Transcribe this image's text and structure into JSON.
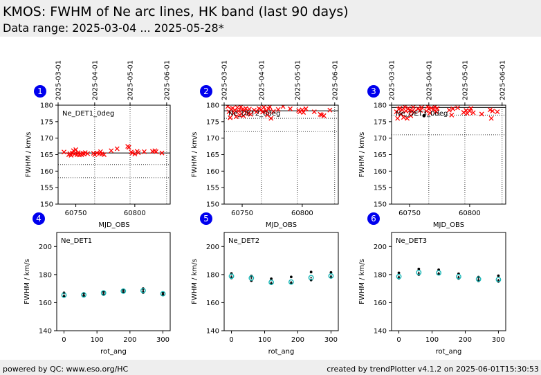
{
  "header": {
    "title": "KMOS: FWHM of Ne arc lines, HK band (last 90 days)",
    "subtitle": "Data range: 2025-03-04 ... 2025-05-28*"
  },
  "footer": {
    "left": "powered by QC: www.eso.org/HC",
    "right": "created by trendPlotter v4.1.2 on 2025-06-01T15:30:53"
  },
  "colors": {
    "badge": "#0000ee",
    "marker_red": "#ff0000",
    "marker_cyan": "#17b5b5",
    "marker_black": "#000000"
  },
  "chart_data": [
    {
      "type": "scatter",
      "panel": "1",
      "label": "Ne_DET1_0deg",
      "xlabel": "MJD_OBS",
      "ylabel": "FWHM / km/s",
      "xlim": [
        60735,
        60830
      ],
      "ylim": [
        150,
        180
      ],
      "xticks": [
        60750,
        60800
      ],
      "yticks": [
        150,
        155,
        160,
        165,
        170,
        175,
        180
      ],
      "top_dates": [
        "2025-03-01",
        "2025-04-01",
        "2025-05-01",
        "2025-06-01"
      ],
      "top_date_mjd": [
        60735,
        60766,
        60796,
        60827
      ],
      "ref_solid": [
        165.5
      ],
      "ref_dotted": [
        162,
        158
      ],
      "points": [
        [
          60740,
          165.8
        ],
        [
          60744,
          165.0
        ],
        [
          60745,
          165.3
        ],
        [
          60746,
          164.8
        ],
        [
          60747,
          165.5
        ],
        [
          60748,
          166.2
        ],
        [
          60749,
          165.2
        ],
        [
          60750,
          166.5
        ],
        [
          60751,
          165.0
        ],
        [
          60752,
          165.6
        ],
        [
          60753,
          164.9
        ],
        [
          60754,
          165.3
        ],
        [
          60755,
          165.0
        ],
        [
          60756,
          165.4
        ],
        [
          60757,
          165.2
        ],
        [
          60758,
          165.6
        ],
        [
          60760,
          165.3
        ],
        [
          60765,
          165.4
        ],
        [
          60766,
          165.0
        ],
        [
          60768,
          165.5
        ],
        [
          60770,
          165.3
        ],
        [
          60771,
          165.9
        ],
        [
          60772,
          165.2
        ],
        [
          60774,
          165.0
        ],
        [
          60780,
          166.2
        ],
        [
          60785,
          166.8
        ],
        [
          60794,
          167.5
        ],
        [
          60795,
          167.2
        ],
        [
          60797,
          165.8
        ],
        [
          60798,
          165.5
        ],
        [
          60800,
          165.2
        ],
        [
          60802,
          166.0
        ],
        [
          60803,
          165.6
        ],
        [
          60808,
          165.9
        ],
        [
          60815,
          166.0
        ],
        [
          60817,
          166.2
        ],
        [
          60818,
          165.9
        ],
        [
          60823,
          165.5
        ]
      ]
    },
    {
      "type": "scatter",
      "panel": "2",
      "label": "Ne_DET2_0deg",
      "xlabel": "MJD_OBS",
      "ylabel": "FWHM / km/s",
      "xlim": [
        60735,
        60830
      ],
      "ylim": [
        150,
        180
      ],
      "xticks": [
        60750,
        60800
      ],
      "yticks": [
        150,
        155,
        160,
        165,
        170,
        175,
        180
      ],
      "top_dates": [
        "2025-03-01",
        "2025-04-01",
        "2025-05-01",
        "2025-06-01"
      ],
      "top_date_mjd": [
        60735,
        60766,
        60796,
        60827
      ],
      "ref_solid": [
        178.3
      ],
      "ref_dotted": [
        176,
        172
      ],
      "points": [
        [
          60738,
          179.6
        ],
        [
          60739,
          178.0
        ],
        [
          60740,
          176.2
        ],
        [
          60741,
          178.8
        ],
        [
          60742,
          179.1
        ],
        [
          60743,
          177.5
        ],
        [
          60744,
          178.5
        ],
        [
          60745,
          176.5
        ],
        [
          60746,
          179.3
        ],
        [
          60747,
          178.2
        ],
        [
          60748,
          177.0
        ],
        [
          60749,
          179.5
        ],
        [
          60750,
          178.6
        ],
        [
          60751,
          176.8
        ],
        [
          60752,
          178.2
        ],
        [
          60753,
          179.0
        ],
        [
          60755,
          177.5
        ],
        [
          60756,
          178.8
        ],
        [
          60757,
          177.2
        ],
        [
          60760,
          178.5
        ],
        [
          60762,
          178.0
        ],
        [
          60764,
          179.0
        ],
        [
          60766,
          178.6
        ],
        [
          60767,
          177.9
        ],
        [
          60768,
          179.4
        ],
        [
          60770,
          178.3
        ],
        [
          60771,
          177.0
        ],
        [
          60772,
          178.9
        ],
        [
          60773,
          179.5
        ],
        [
          60774,
          176.0
        ],
        [
          60776,
          178.1
        ],
        [
          60780,
          178.7
        ],
        [
          60784,
          179.6
        ],
        [
          60790,
          178.9
        ],
        [
          60797,
          178.4
        ],
        [
          60798,
          178.0
        ],
        [
          60800,
          178.6
        ],
        [
          60801,
          177.8
        ],
        [
          60803,
          178.9
        ],
        [
          60810,
          178.0
        ],
        [
          60815,
          177.2
        ],
        [
          60816,
          177.0
        ],
        [
          60818,
          176.8
        ],
        [
          60823,
          178.5
        ]
      ]
    },
    {
      "type": "scatter",
      "panel": "3",
      "label": "Ne_DET3_0deg",
      "xlabel": "MJD_OBS",
      "ylabel": "FWHM / km/s",
      "xlim": [
        60735,
        60830
      ],
      "ylim": [
        150,
        180
      ],
      "xticks": [
        60750,
        60800
      ],
      "yticks": [
        150,
        155,
        160,
        165,
        170,
        175,
        180
      ],
      "top_dates": [
        "2025-03-01",
        "2025-04-01",
        "2025-05-01",
        "2025-06-01"
      ],
      "top_date_mjd": [
        60735,
        60766,
        60796,
        60827
      ],
      "ref_solid": [
        179.3
      ],
      "ref_dotted": [
        177,
        171
      ],
      "points": [
        [
          60739,
          178.0
        ],
        [
          60740,
          176.0
        ],
        [
          60741,
          178.8
        ],
        [
          60742,
          179.1
        ],
        [
          60743,
          177.3
        ],
        [
          60744,
          178.6
        ],
        [
          60745,
          176.3
        ],
        [
          60746,
          179.5
        ],
        [
          60747,
          178.2
        ],
        [
          60748,
          176.0
        ],
        [
          60749,
          179.0
        ],
        [
          60750,
          178.4
        ],
        [
          60751,
          176.8
        ],
        [
          60752,
          178.2
        ],
        [
          60753,
          179.4
        ],
        [
          60754,
          178.0
        ],
        [
          60757,
          178.9
        ],
        [
          60759,
          178.4
        ],
        [
          60760,
          179.3
        ],
        [
          60764,
          178.2
        ],
        [
          60765,
          179.6
        ],
        [
          60766,
          178.9
        ],
        [
          60767,
          177.6
        ],
        [
          60768,
          179.1
        ],
        [
          60770,
          178.6
        ],
        [
          60771,
          179.5
        ],
        [
          60772,
          178.0
        ],
        [
          60773,
          179.0
        ],
        [
          60783,
          178.5
        ],
        [
          60785,
          177.0
        ],
        [
          60786,
          178.9
        ],
        [
          60790,
          179.2
        ],
        [
          60795,
          177.8
        ],
        [
          60797,
          178.4
        ],
        [
          60798,
          177.5
        ],
        [
          60800,
          178.2
        ],
        [
          60801,
          179.0
        ],
        [
          60803,
          177.7
        ],
        [
          60810,
          177.3
        ],
        [
          60817,
          178.6
        ],
        [
          60818,
          176.0
        ],
        [
          60819,
          178.2
        ],
        [
          60823,
          178.0
        ]
      ],
      "extra_black_points": [
        [
          60762,
          176.8
        ]
      ]
    },
    {
      "type": "scatter",
      "panel": "4",
      "label": "Ne_DET1",
      "xlabel": "rot_ang",
      "ylabel": "FWHM / km/s",
      "xlim": [
        -22,
        322
      ],
      "ylim": [
        140,
        210
      ],
      "xticks": [
        0,
        100,
        200,
        300
      ],
      "yticks": [
        140,
        160,
        180,
        200
      ],
      "points": [
        [
          0,
          165.3
        ],
        [
          60,
          165.5
        ],
        [
          120,
          166.9
        ],
        [
          180,
          168.2
        ],
        [
          240,
          168.6
        ],
        [
          300,
          166.3
        ]
      ],
      "black_points": [
        [
          0,
          167.0
        ],
        [
          0,
          164.5
        ],
        [
          60,
          166.6
        ],
        [
          60,
          164.8
        ],
        [
          120,
          167.8
        ],
        [
          120,
          165.7
        ],
        [
          180,
          169.2
        ],
        [
          180,
          167.4
        ],
        [
          240,
          170.0
        ],
        [
          240,
          167.2
        ],
        [
          300,
          167.0
        ],
        [
          300,
          165.5
        ]
      ]
    },
    {
      "type": "scatter",
      "panel": "5",
      "label": "Ne_DET2",
      "xlabel": "rot_ang",
      "ylabel": "FWHM / km/s",
      "xlim": [
        -22,
        322
      ],
      "ylim": [
        140,
        210
      ],
      "xticks": [
        0,
        100,
        200,
        300
      ],
      "yticks": [
        140,
        160,
        180,
        200
      ],
      "points": [
        [
          0,
          178.8
        ],
        [
          60,
          177.5
        ],
        [
          120,
          174.5
        ],
        [
          180,
          174.7
        ],
        [
          240,
          177.8
        ],
        [
          300,
          179.0
        ]
      ],
      "black_points": [
        [
          0,
          180.8
        ],
        [
          0,
          177.6
        ],
        [
          60,
          179.0
        ],
        [
          60,
          175.6
        ],
        [
          120,
          177.0
        ],
        [
          120,
          173.5
        ],
        [
          180,
          178.3
        ],
        [
          180,
          173.8
        ],
        [
          240,
          181.8
        ],
        [
          240,
          176.1
        ],
        [
          300,
          181.5
        ],
        [
          300,
          178.0
        ]
      ]
    },
    {
      "type": "scatter",
      "panel": "6",
      "label": "Ne_DET3",
      "xlabel": "rot_ang",
      "ylabel": "FWHM / km/s",
      "xlim": [
        -22,
        322
      ],
      "ylim": [
        140,
        210
      ],
      "xticks": [
        0,
        100,
        200,
        300
      ],
      "yticks": [
        140,
        160,
        180,
        200
      ],
      "points": [
        [
          0,
          178.6
        ],
        [
          60,
          181.5
        ],
        [
          120,
          181.2
        ],
        [
          180,
          178.5
        ],
        [
          240,
          176.8
        ],
        [
          300,
          176.4
        ]
      ],
      "black_points": [
        [
          0,
          181.2
        ],
        [
          0,
          177.4
        ],
        [
          60,
          184.0
        ],
        [
          60,
          180.0
        ],
        [
          120,
          183.4
        ],
        [
          120,
          180.3
        ],
        [
          180,
          180.6
        ],
        [
          180,
          177.2
        ],
        [
          240,
          178.2
        ],
        [
          240,
          175.5
        ],
        [
          300,
          179.2
        ],
        [
          300,
          175.1
        ]
      ]
    }
  ]
}
